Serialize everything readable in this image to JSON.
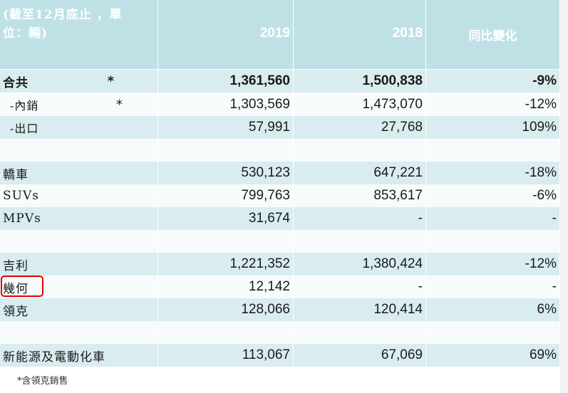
{
  "header": {
    "label_line1": "(截至12月底止 ，單",
    "label_line2": "位：輛)",
    "year1": "2019",
    "year2": "2018",
    "change": "同比變化"
  },
  "rows": [
    {
      "label": "合共",
      "star": "*",
      "v2019": "1,361,560",
      "v2018": "1,500,838",
      "change": "-9%",
      "style": "shade",
      "bold": true
    },
    {
      "label": "-內銷",
      "star": "*",
      "v2019": "1,303,569",
      "v2018": "1,473,070",
      "change": "-12%",
      "style": "white",
      "sub": true
    },
    {
      "label": "-出口",
      "star": "",
      "v2019": "57,991",
      "v2018": "27,768",
      "change": "109%",
      "style": "shade",
      "sub": true
    },
    {
      "label": "",
      "star": "",
      "v2019": "",
      "v2018": "",
      "change": "",
      "style": "white"
    },
    {
      "label": "轎車",
      "star": "",
      "v2019": "530,123",
      "v2018": "647,221",
      "change": "-18%",
      "style": "shade"
    },
    {
      "label": "SUVs",
      "star": "",
      "v2019": "799,763",
      "v2018": "853,617",
      "change": "-6%",
      "style": "white"
    },
    {
      "label": "MPVs",
      "star": "",
      "v2019": "31,674",
      "v2018": "-",
      "change": "-",
      "style": "shade"
    },
    {
      "label": "",
      "star": "",
      "v2019": "",
      "v2018": "",
      "change": "",
      "style": "white"
    },
    {
      "label": "吉利",
      "star": "",
      "v2019": "1,221,352",
      "v2018": "1,380,424",
      "change": "-12%",
      "style": "shade"
    },
    {
      "label": "幾何",
      "star": "",
      "v2019": "12,142",
      "v2018": "-",
      "change": "-",
      "style": "white"
    },
    {
      "label": "領克",
      "star": "",
      "v2019": "128,066",
      "v2018": "120,414",
      "change": "6%",
      "style": "shade"
    },
    {
      "label": "",
      "star": "",
      "v2019": "",
      "v2018": "",
      "change": "",
      "style": "white"
    },
    {
      "label": "新能源及電動化車",
      "star": "",
      "v2019": "113,067",
      "v2018": "67,069",
      "change": "69%",
      "style": "shade"
    }
  ],
  "footnote": "*含領克銷售",
  "highlight_color": "#e60000"
}
